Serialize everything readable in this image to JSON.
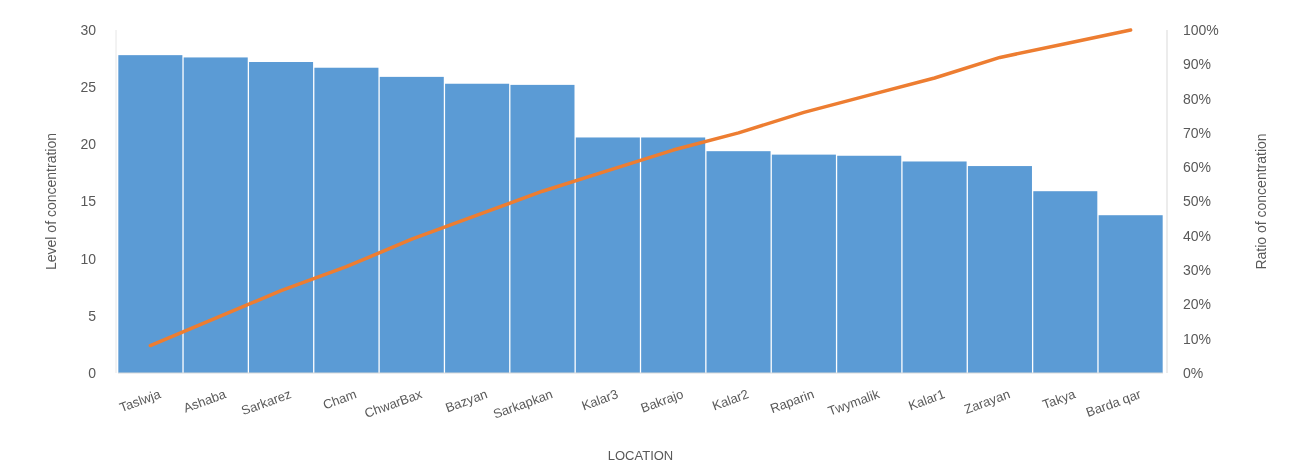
{
  "chart_data": {
    "type": "bar",
    "xlabel": "LOCATION",
    "ylabel": "Level of concentration",
    "y2label": "Ratio of concentration",
    "categories": [
      "Taslwja",
      "Ashaba",
      "Sarkarez",
      "Cham",
      "ChwarBax",
      "Bazyan",
      "Sarkapkan",
      "Kalar3",
      "Bakrajo",
      "Kalar2",
      "Raparin",
      "Twymalik",
      "Kalar1",
      "Zarayan",
      "Takya",
      "Barda qar"
    ],
    "series": [
      {
        "color": "#5b9bd5",
        "values": [
          27.8,
          27.6,
          27.2,
          26.7,
          25.9,
          25.3,
          25.2,
          20.6,
          20.6,
          19.4,
          19.1,
          19.0,
          18.5,
          18.1,
          15.9,
          13.8
        ]
      },
      {
        "type": "line",
        "axis": "y2",
        "color": "#ed7d31",
        "values": [
          8,
          16,
          24,
          31,
          39,
          46,
          53,
          59,
          65,
          70,
          76,
          81,
          86,
          92,
          96,
          100
        ]
      }
    ],
    "ylim": [
      0,
      30
    ],
    "yticks": [
      0,
      5,
      10,
      15,
      20,
      25,
      30
    ],
    "y2lim": [
      0,
      100
    ],
    "y2ticks": [
      {
        "value": 0,
        "label": "0%"
      },
      {
        "value": 10,
        "label": "10%"
      },
      {
        "value": 20,
        "label": "20%"
      },
      {
        "value": 30,
        "label": "30%"
      },
      {
        "value": 40,
        "label": "40%"
      },
      {
        "value": 50,
        "label": "50%"
      },
      {
        "value": 60,
        "label": "60%"
      },
      {
        "value": 70,
        "label": "70%"
      },
      {
        "value": 80,
        "label": "80%"
      },
      {
        "value": 90,
        "label": "90%"
      },
      {
        "value": 100,
        "label": "100%"
      }
    ],
    "grid": false,
    "marker": "none",
    "line_style": "solid"
  }
}
